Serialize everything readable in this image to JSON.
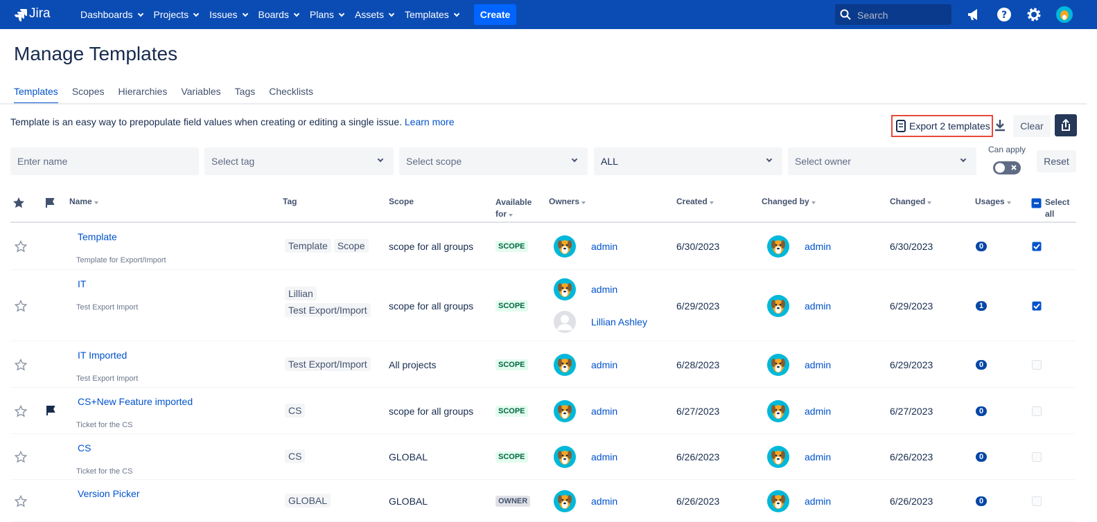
{
  "nav": {
    "brand": "Jira",
    "menus": [
      "Dashboards",
      "Projects",
      "Issues",
      "Boards",
      "Plans",
      "Assets",
      "Templates"
    ],
    "create": "Create",
    "search": "Search"
  },
  "page": {
    "title": "Manage Templates",
    "tabs": [
      "Templates",
      "Scopes",
      "Hierarchies",
      "Variables",
      "Tags",
      "Checklists"
    ],
    "active_tab": 0,
    "description": "Template is an easy way to prepopulate field values when creating or editing a single issue.",
    "learn_more": "Learn more",
    "export": "Export 2 templates",
    "clear": "Clear"
  },
  "filters": {
    "name": "Enter name",
    "tag": "Select tag",
    "scope": "Select scope",
    "available": "ALL",
    "owner": "Select owner",
    "can_apply": "Can apply",
    "reset": "Reset"
  },
  "table": {
    "headers": {
      "name": "Name",
      "tag": "Tag",
      "scope": "Scope",
      "available": "Available for",
      "owners": "Owners",
      "created": "Created",
      "changed_by": "Changed by",
      "changed": "Changed",
      "usages": "Usages",
      "select": "Select all"
    },
    "rows": [
      {
        "name": "Template",
        "description": "Template for Export/Import",
        "flagged": false,
        "tags": [
          "Template",
          "Scope"
        ],
        "scope": "scope for all groups",
        "available": "SCOPE",
        "available_bg": "#e3fcef",
        "available_fg": "#006644",
        "owners": [
          {
            "name": "admin",
            "avatar": "dog"
          }
        ],
        "created": "6/30/2023",
        "changed_by": "admin",
        "changed": "6/30/2023",
        "usages": 0,
        "selected": true
      },
      {
        "name": "IT",
        "description": "Test Export Import",
        "flagged": false,
        "tags": [
          "Lillian",
          "Test Export/Import"
        ],
        "scope": "scope for all groups",
        "available": "SCOPE",
        "available_bg": "#e3fcef",
        "available_fg": "#006644",
        "owners": [
          {
            "name": "admin",
            "avatar": "dog"
          },
          {
            "name": "Lillian Ashley",
            "avatar": "default"
          }
        ],
        "created": "6/29/2023",
        "changed_by": "admin",
        "changed": "6/29/2023",
        "usages": 1,
        "selected": true
      },
      {
        "name": "IT Imported",
        "description": "Test Export Import",
        "flagged": false,
        "tags": [
          "Test Export/Import"
        ],
        "scope": "All projects",
        "available": "SCOPE",
        "available_bg": "#e3fcef",
        "available_fg": "#006644",
        "owners": [
          {
            "name": "admin",
            "avatar": "dog"
          }
        ],
        "created": "6/28/2023",
        "changed_by": "admin",
        "changed": "6/29/2023",
        "usages": 0,
        "selected": false
      },
      {
        "name": "CS+New Feature imported",
        "description": "Ticket for the CS",
        "flagged": true,
        "tags": [
          "CS"
        ],
        "scope": "scope for all groups",
        "available": "SCOPE",
        "available_bg": "#e3fcef",
        "available_fg": "#006644",
        "owners": [
          {
            "name": "admin",
            "avatar": "dog"
          }
        ],
        "created": "6/27/2023",
        "changed_by": "admin",
        "changed": "6/27/2023",
        "usages": 0,
        "selected": false
      },
      {
        "name": "CS",
        "description": "Ticket for the CS",
        "flagged": false,
        "tags": [
          "CS"
        ],
        "scope": "GLOBAL",
        "available": "SCOPE",
        "available_bg": "#e3fcef",
        "available_fg": "#006644",
        "owners": [
          {
            "name": "admin",
            "avatar": "dog"
          }
        ],
        "created": "6/26/2023",
        "changed_by": "admin",
        "changed": "6/26/2023",
        "usages": 0,
        "selected": false
      },
      {
        "name": "Version Picker",
        "description": "",
        "flagged": false,
        "tags": [
          "GLOBAL"
        ],
        "scope": "GLOBAL",
        "available": "OWNER",
        "available_bg": "#dfe1e6",
        "available_fg": "#42526e",
        "owners": [
          {
            "name": "admin",
            "avatar": "dog"
          }
        ],
        "created": "6/26/2023",
        "changed_by": "admin",
        "changed": "6/26/2023",
        "usages": 0,
        "selected": false
      }
    ]
  }
}
